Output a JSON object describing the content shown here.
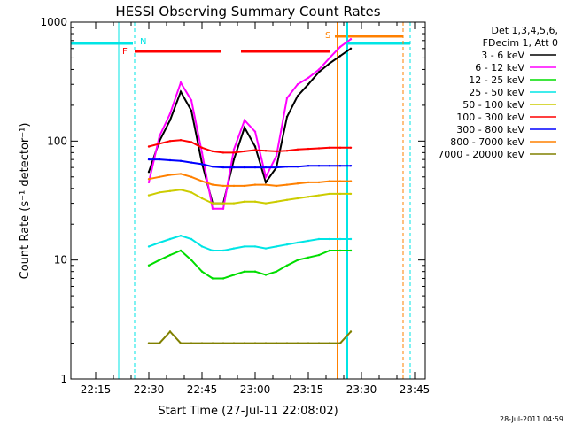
{
  "chart_data": {
    "type": "line",
    "title": "HESSI Observing Summary Count Rates",
    "xlabel": "Start Time (27-Jul-11 22:08:02)",
    "ylabel": "Count Rate (s⁻¹ detector⁻¹)",
    "ylog": true,
    "ylim": [
      1,
      1000
    ],
    "xlim_minutes_after_22_08": [
      0,
      100
    ],
    "x_ticks": [
      "22:15",
      "22:30",
      "22:45",
      "23:00",
      "23:15",
      "23:30",
      "23:45"
    ],
    "y_ticks": [
      "1",
      "10",
      "100",
      "1000"
    ],
    "legend_header": [
      "Det 1,3,4,5,6,",
      "FDecim 1, Att 0"
    ],
    "legend_position": "right-outside",
    "flags": {
      "saa_label": "N",
      "flare_label": "F",
      "s_label": "S"
    },
    "x_minutes": [
      22,
      25,
      28,
      31,
      34,
      37,
      40,
      43,
      46,
      49,
      52,
      55,
      58,
      61,
      64,
      67,
      70,
      73,
      76,
      79
    ],
    "series": [
      {
        "name": "3 - 6 keV",
        "color": "#000000",
        "values": [
          55,
          100,
          150,
          260,
          180,
          65,
          30,
          30,
          70,
          130,
          90,
          45,
          60,
          160,
          240,
          300,
          380,
          450,
          520,
          600
        ]
      },
      {
        "name": "6 - 12 keV",
        "color": "#ff00ff",
        "values": [
          45,
          110,
          170,
          310,
          220,
          80,
          27,
          27,
          85,
          150,
          120,
          50,
          75,
          230,
          300,
          340,
          400,
          500,
          620,
          720
        ]
      },
      {
        "name": "12 - 25 keV",
        "color": "#00dd00",
        "values": [
          9,
          10,
          11,
          12,
          10,
          8,
          7,
          7,
          7.5,
          8,
          8,
          7.5,
          8,
          9,
          10,
          10.5,
          11,
          12,
          12,
          12
        ]
      },
      {
        "name": "25 - 50 keV",
        "color": "#00e5e5",
        "values": [
          13,
          14,
          15,
          16,
          15,
          13,
          12,
          12,
          12.5,
          13,
          13,
          12.5,
          13,
          13.5,
          14,
          14.5,
          15,
          15,
          15,
          15
        ]
      },
      {
        "name": "50 - 100 keV",
        "color": "#cccc00",
        "values": [
          35,
          37,
          38,
          39,
          37,
          33,
          30,
          30,
          30,
          31,
          31,
          30,
          31,
          32,
          33,
          34,
          35,
          36,
          36,
          36
        ]
      },
      {
        "name": "100 - 300 keV",
        "color": "#ff0000",
        "values": [
          90,
          95,
          100,
          102,
          98,
          88,
          82,
          80,
          80,
          82,
          84,
          83,
          82,
          83,
          85,
          86,
          87,
          88,
          88,
          88
        ]
      },
      {
        "name": "300 - 800 keV",
        "color": "#0000ff",
        "values": [
          70,
          70,
          69,
          68,
          66,
          64,
          61,
          60,
          60,
          60,
          60,
          60,
          60,
          61,
          61,
          62,
          62,
          62,
          62,
          62
        ]
      },
      {
        "name": "800 - 7000 keV",
        "color": "#ff8000",
        "values": [
          48,
          50,
          52,
          53,
          50,
          46,
          43,
          42,
          42,
          42,
          43,
          43,
          42,
          43,
          44,
          45,
          45,
          46,
          46,
          46
        ]
      },
      {
        "name": "7000 - 20000 keV",
        "color": "#808000",
        "values": [
          2,
          2,
          2.5,
          2,
          2,
          2,
          2,
          2,
          2,
          2,
          2,
          2,
          2,
          2,
          2,
          2,
          2,
          2,
          2,
          2.5
        ]
      }
    ]
  },
  "footer": {
    "timestamp": "28-Jul-2011 04:59"
  }
}
